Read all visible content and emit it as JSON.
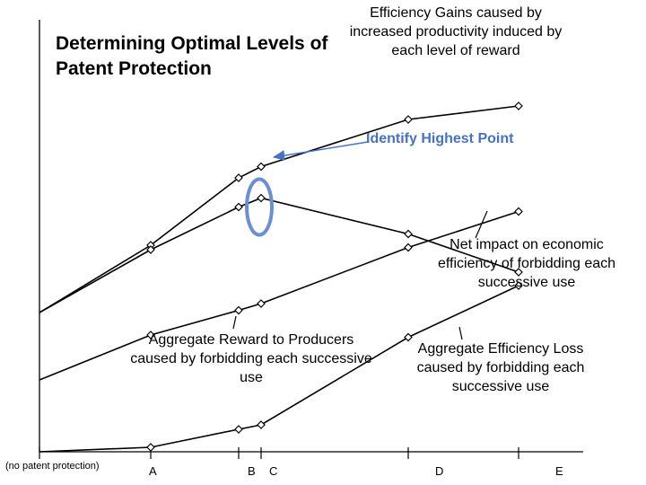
{
  "chart_data": {
    "type": "line",
    "title": "Determining Optimal Levels of Patent Protection",
    "xlabel": "",
    "ylabel": "",
    "categories": [
      "(no patent protection)",
      "A",
      "B",
      "C",
      "D",
      "E"
    ],
    "x": [
      0,
      1,
      2,
      3,
      4,
      5
    ],
    "series": [
      {
        "name": "Efficiency Gains caused by increased productivity induced by each level of reward",
        "values": [
          62,
          92,
          122,
          127,
          148,
          154
        ]
      },
      {
        "name": "Net impact on economic efficiency of forbidding each successive use",
        "values": [
          62,
          90,
          109,
          113,
          97,
          80
        ]
      },
      {
        "name": "Aggregate Reward to Producers caused by forbidding each successive use",
        "values": [
          32,
          52,
          63,
          66,
          91,
          107
        ]
      },
      {
        "name": "Aggregate Efficiency Loss caused by forbidding each successive use",
        "values": [
          0,
          2,
          10,
          12,
          51,
          74
        ]
      }
    ],
    "annotations": {
      "highlight": "Identify Highest Point"
    }
  }
}
